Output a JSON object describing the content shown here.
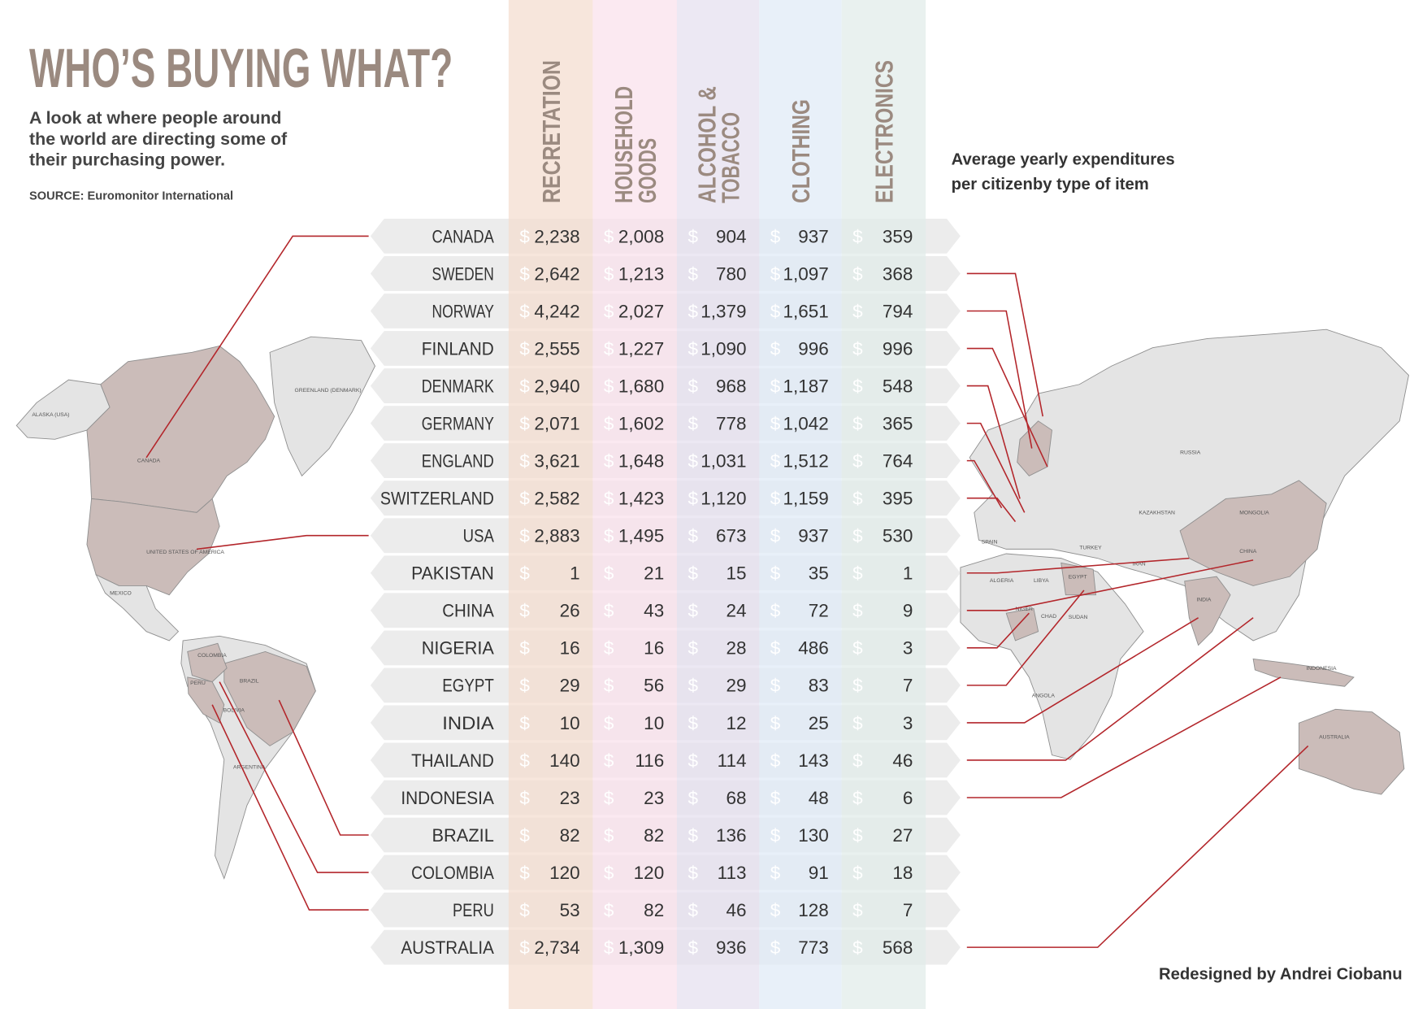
{
  "title": "WHO’S BUYING WHAT?",
  "subtitle": [
    "A look at where people around",
    "the world are directing some of",
    "their purchasing power."
  ],
  "source": "SOURCE: Euromonitor International",
  "note": [
    "Average yearly expenditures",
    "per citizenby type of item"
  ],
  "credit": "Redesigned by Andrei Ciobanu",
  "currency_symbol": "$",
  "columns": [
    {
      "header": [
        "RECRETATION"
      ],
      "color": "#f4dccf"
    },
    {
      "header": [
        "HOUSEHOLD",
        "GOODS"
      ],
      "color": "#f9e1eb"
    },
    {
      "header": [
        "ALCOHOL &",
        "TOBACCO"
      ],
      "color": "#e4dfee"
    },
    {
      "header": [
        "CLOTHING"
      ],
      "color": "#dfeaf6"
    },
    {
      "header": [
        "ELECTRONICS"
      ],
      "color": "#e0ece9"
    }
  ],
  "rows": [
    {
      "country": "CANADA",
      "values": [
        "2,238",
        "2,008",
        "904",
        "937",
        "359"
      ]
    },
    {
      "country": "SWEDEN",
      "values": [
        "2,642",
        "1,213",
        "780",
        "1,097",
        "368"
      ]
    },
    {
      "country": "NORWAY",
      "values": [
        "4,242",
        "2,027",
        "1,379",
        "1,651",
        "794"
      ]
    },
    {
      "country": "FINLAND",
      "values": [
        "2,555",
        "1,227",
        "1,090",
        "996",
        "996"
      ]
    },
    {
      "country": "DENMARK",
      "values": [
        "2,940",
        "1,680",
        "968",
        "1,187",
        "548"
      ]
    },
    {
      "country": "GERMANY",
      "values": [
        "2,071",
        "1,602",
        "778",
        "1,042",
        "365"
      ]
    },
    {
      "country": "ENGLAND",
      "values": [
        "3,621",
        "1,648",
        "1,031",
        "1,512",
        "764"
      ]
    },
    {
      "country": "SWITZERLAND",
      "values": [
        "2,582",
        "1,423",
        "1,120",
        "1,159",
        "395"
      ]
    },
    {
      "country": "USA",
      "values": [
        "2,883",
        "1,495",
        "673",
        "937",
        "530"
      ]
    },
    {
      "country": "PAKISTAN",
      "values": [
        "1",
        "21",
        "15",
        "35",
        "1"
      ]
    },
    {
      "country": "CHINA",
      "values": [
        "26",
        "43",
        "24",
        "72",
        "9"
      ]
    },
    {
      "country": "NIGERIA",
      "values": [
        "16",
        "16",
        "28",
        "486",
        "3"
      ]
    },
    {
      "country": "EGYPT",
      "values": [
        "29",
        "56",
        "29",
        "83",
        "7"
      ]
    },
    {
      "country": "INDIA",
      "values": [
        "10",
        "10",
        "12",
        "25",
        "3"
      ]
    },
    {
      "country": "THAILAND",
      "values": [
        "140",
        "116",
        "114",
        "143",
        "46"
      ]
    },
    {
      "country": "INDONESIA",
      "values": [
        "23",
        "23",
        "68",
        "48",
        "6"
      ]
    },
    {
      "country": "BRAZIL",
      "values": [
        "82",
        "82",
        "136",
        "130",
        "27"
      ]
    },
    {
      "country": "COLOMBIA",
      "values": [
        "120",
        "120",
        "113",
        "91",
        "18"
      ]
    },
    {
      "country": "PERU",
      "values": [
        "53",
        "82",
        "46",
        "128",
        "7"
      ]
    },
    {
      "country": "AUSTRALIA",
      "values": [
        "2,734",
        "1,309",
        "936",
        "773",
        "568"
      ]
    }
  ],
  "map_labels": [
    "ALASKA (USA)",
    "CANADA",
    "GREENLAND (DENMARK)",
    "UNITED STATES OF AMERICA",
    "MEXICO",
    "COLOMBIA",
    "BRAZIL",
    "PERU",
    "BOLIVIA",
    "ARGENTINA",
    "RUSSIA",
    "KAZAKHSTAN",
    "MONGOLIA",
    "CHINA",
    "INDIA",
    "IRAN",
    "TURKEY",
    "SPAIN",
    "ALGERIA",
    "LIBYA",
    "EGYPT",
    "NIGER",
    "CHAD",
    "SUDAN",
    "ANGOLA",
    "AUSTRALIA",
    "INDONESIA"
  ]
}
